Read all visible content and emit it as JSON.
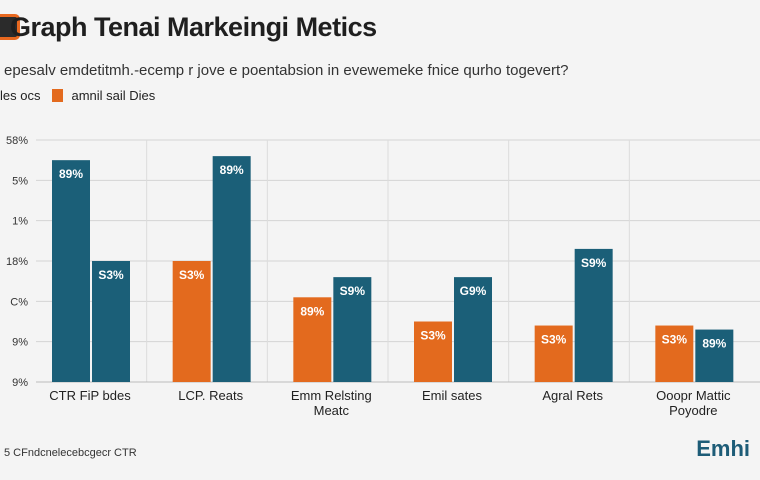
{
  "header": {
    "title": "Graph Tenai Markeingi Metics",
    "subtitle": "epesalv emdetitmh.-ecemp r jove e poentabsion in evewemeke fnice qurho togevert?"
  },
  "legend": {
    "left_text": "les ocs",
    "entry": "amnil sail Dies"
  },
  "footer": {
    "note": "5  CFndcnelecebcgecr CTR",
    "brand": "Emhi"
  },
  "chart_data": {
    "type": "bar",
    "categories": [
      "CTR FiP bdes",
      "LCP. Reats",
      "Emm Relsting Meatc",
      "Emil sates",
      "Agral Rets",
      "Ooopr Mattic Poyodre"
    ],
    "yticks": [
      "9%",
      "9%",
      "C%",
      "18%",
      "1%",
      "5%",
      "58%"
    ],
    "ylim": [
      0,
      6
    ],
    "grid": true,
    "series": [
      {
        "color": "#1b5f78",
        "values": [
          5.5,
          5.6,
          2.6,
          2.6,
          3.3,
          1.3
        ],
        "labels": [
          "89%",
          "89%",
          "S9%",
          "G9%",
          "S9%",
          "89%"
        ]
      },
      {
        "color": "#e36a1e",
        "values": [
          3.0,
          3.0,
          2.1,
          1.5,
          1.4,
          1.4
        ],
        "labels": [
          "S3%",
          "S3%",
          "89%",
          "S3%",
          "S3%",
          "S3%"
        ]
      }
    ]
  }
}
